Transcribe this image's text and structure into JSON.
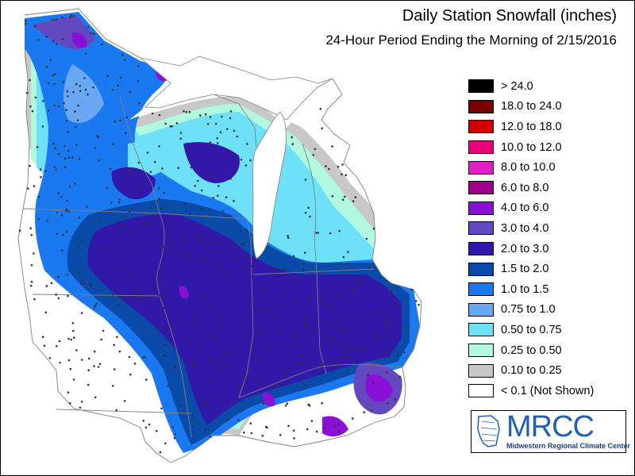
{
  "header": {
    "title": "Daily Station Snowfall (inches)",
    "subtitle": "24-Hour Period Ending the Morning of 2/15/2016"
  },
  "legend": [
    {
      "label": "> 24.0",
      "color": "#000000"
    },
    {
      "label": "18.0 to 24.0",
      "color": "#7a0000"
    },
    {
      "label": "12.0 to 18.0",
      "color": "#d00000"
    },
    {
      "label": "10.0 to 12.0",
      "color": "#e8007a"
    },
    {
      "label": "8.0 to 10.0",
      "color": "#e020c0"
    },
    {
      "label": "6.0 to 8.0",
      "color": "#a0008c"
    },
    {
      "label": "4.0 to 6.0",
      "color": "#8a10d8"
    },
    {
      "label": "3.0 to 4.0",
      "color": "#6448c0"
    },
    {
      "label": "2.0 to 3.0",
      "color": "#3218a8"
    },
    {
      "label": "1.5 to 2.0",
      "color": "#0a4aa8"
    },
    {
      "label": "1.0 to 1.5",
      "color": "#1a78f0"
    },
    {
      "label": "0.75 to 1.0",
      "color": "#6aa8f4"
    },
    {
      "label": "0.50 to 0.75",
      "color": "#6ee0f8"
    },
    {
      "label": "0.25 to 0.50",
      "color": "#b0f8e0"
    },
    {
      "label": "0.10 to 0.25",
      "color": "#c8c8c8"
    },
    {
      "label": "< 0.1 (Not Shown)",
      "color": "#ffffff"
    }
  ],
  "logo": {
    "name": "MRCC",
    "full_name": "Midwestern Regional Climate Center"
  }
}
